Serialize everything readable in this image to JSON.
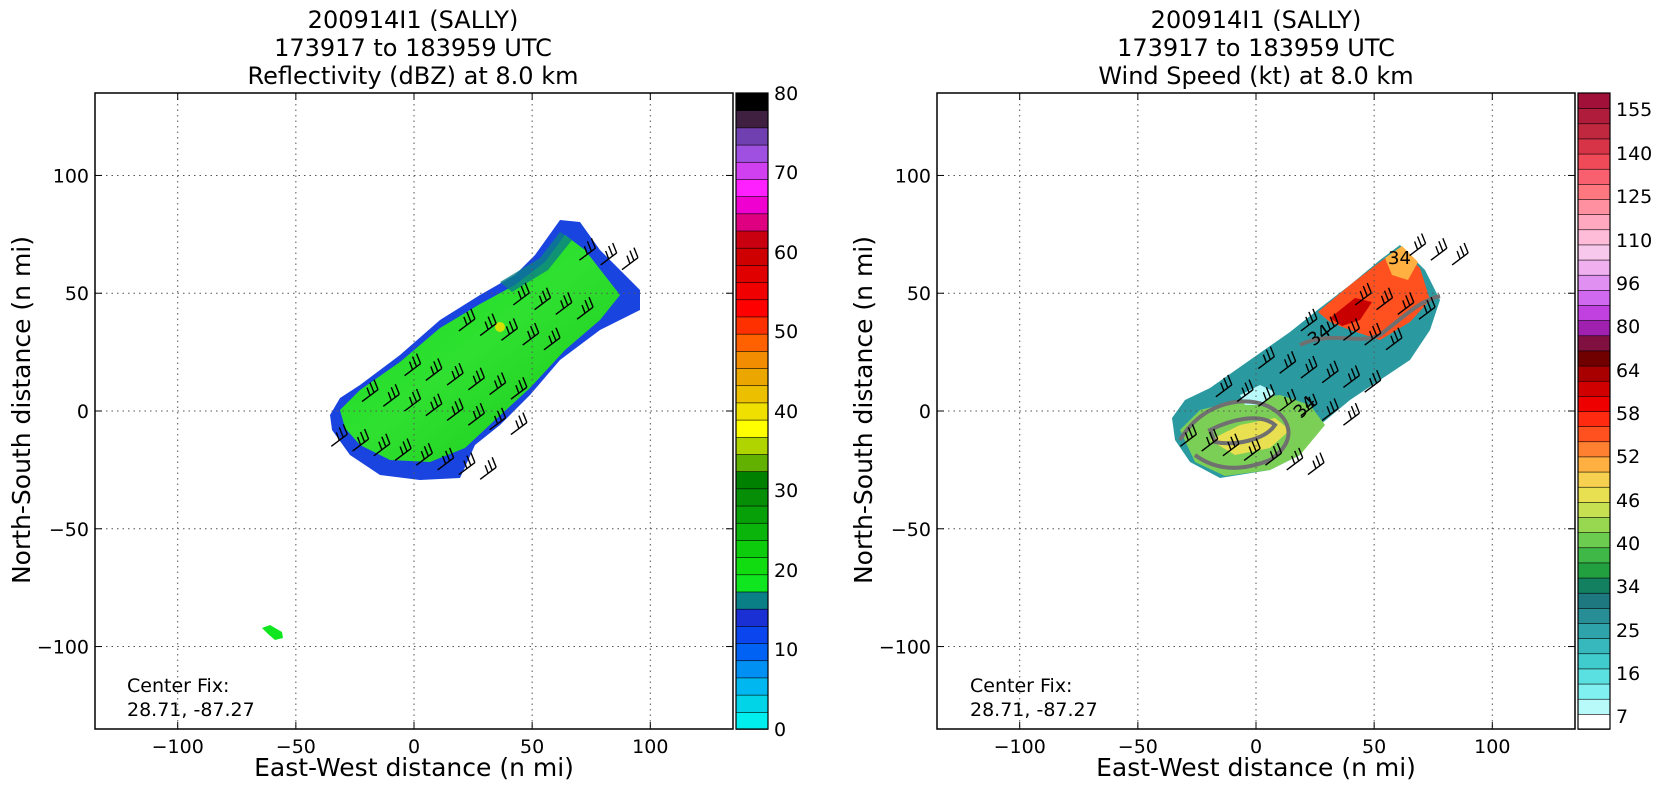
{
  "panels": [
    {
      "title_lines": [
        "200914I1 (SALLY)",
        "173917 to 183959 UTC",
        "Reflectivity (dBZ) at 8.0 km"
      ],
      "xlabel": "East-West distance (n mi)",
      "ylabel": "North-South distance (n mi)",
      "center_fix": [
        "Center Fix:",
        "28.71, -87.27"
      ],
      "colorbar_labels": [
        "0",
        "10",
        "20",
        "30",
        "40",
        "50",
        "60",
        "70",
        "80"
      ]
    },
    {
      "title_lines": [
        "200914I1 (SALLY)",
        "173917 to 183959 UTC",
        "Wind Speed (kt) at 8.0 km"
      ],
      "xlabel": "East-West distance (n mi)",
      "ylabel": "North-South distance (n mi)",
      "center_fix": [
        "Center Fix:",
        "28.71, -87.27"
      ],
      "colorbar_labels": [
        "7",
        "16",
        "25",
        "34",
        "40",
        "46",
        "52",
        "58",
        "64",
        "80",
        "96",
        "110",
        "125",
        "140",
        "155"
      ],
      "contour_labels": [
        "34",
        "34",
        "34"
      ]
    }
  ],
  "chart_data": [
    {
      "type": "heatmap",
      "title": "200914I1 (SALLY) 173917 to 183959 UTC Reflectivity (dBZ) at 8.0 km",
      "xlabel": "East-West distance (n mi)",
      "ylabel": "North-South distance (n mi)",
      "xlim": [
        -135,
        135
      ],
      "ylim": [
        -135,
        135
      ],
      "xticks": [
        -100,
        -50,
        0,
        50,
        100
      ],
      "yticks": [
        -100,
        -50,
        0,
        50,
        100
      ],
      "grid": true,
      "colorbar": {
        "range": [
          0,
          80
        ],
        "ticks": [
          0,
          10,
          20,
          30,
          40,
          50,
          60,
          70,
          80
        ],
        "colors": [
          "#00eeee",
          "#00d4e6",
          "#00b8ef",
          "#008ff2",
          "#0061f5",
          "#0a45ee",
          "#1a2fd4",
          "#0a7f86",
          "#10e620",
          "#10dc10",
          "#0ccc0c",
          "#0ab40a",
          "#08a008",
          "#068f06",
          "#008000",
          "#62b000",
          "#b0d400",
          "#ffff00",
          "#f0e000",
          "#ecc000",
          "#eca600",
          "#f28c00",
          "#ff6000",
          "#ff3000",
          "#ff0000",
          "#f00000",
          "#e00000",
          "#cf0000",
          "#c80010",
          "#de0080",
          "#f000d0",
          "#ff20ff",
          "#d040f0",
          "#a050e0",
          "#7040b0",
          "#402040",
          "#000000"
        ]
      },
      "center_fix": [
        28.71,
        -87.27
      ]
    },
    {
      "type": "heatmap",
      "title": "200914I1 (SALLY) 173917 to 183959 UTC Wind Speed (kt) at 8.0 km",
      "xlabel": "East-West distance (n mi)",
      "ylabel": "North-South distance (n mi)",
      "xlim": [
        -135,
        135
      ],
      "ylim": [
        -135,
        135
      ],
      "xticks": [
        -100,
        -50,
        0,
        50,
        100
      ],
      "yticks": [
        -100,
        -50,
        0,
        50,
        100
      ],
      "grid": true,
      "colorbar": {
        "ticks": [
          7,
          16,
          25,
          34,
          40,
          46,
          52,
          58,
          64,
          80,
          96,
          110,
          125,
          140,
          155
        ],
        "colors": [
          "#ffffff",
          "#b8fafa",
          "#80f0f0",
          "#5ae0e0",
          "#40cccc",
          "#36b8bc",
          "#2ea4aa",
          "#288e96",
          "#1e7880",
          "#138060",
          "#22a040",
          "#40b848",
          "#6ccc50",
          "#98d850",
          "#c6e052",
          "#e8e050",
          "#f8d050",
          "#ffb040",
          "#ff8030",
          "#ff5020",
          "#ff2a10",
          "#ee0000",
          "#d00000",
          "#a80000",
          "#700000",
          "#801040",
          "#a020b0",
          "#c040e0",
          "#d068f0",
          "#e090f0",
          "#f0b0f0",
          "#f8c8ec",
          "#ffbcd8",
          "#ffa8c0",
          "#ff90a0",
          "#ff7880",
          "#f86070",
          "#f04a58",
          "#d83448",
          "#c02840",
          "#b01c3c",
          "#a01038"
        ]
      },
      "contour_level": 34,
      "center_fix": [
        28.71,
        -87.27
      ]
    }
  ]
}
